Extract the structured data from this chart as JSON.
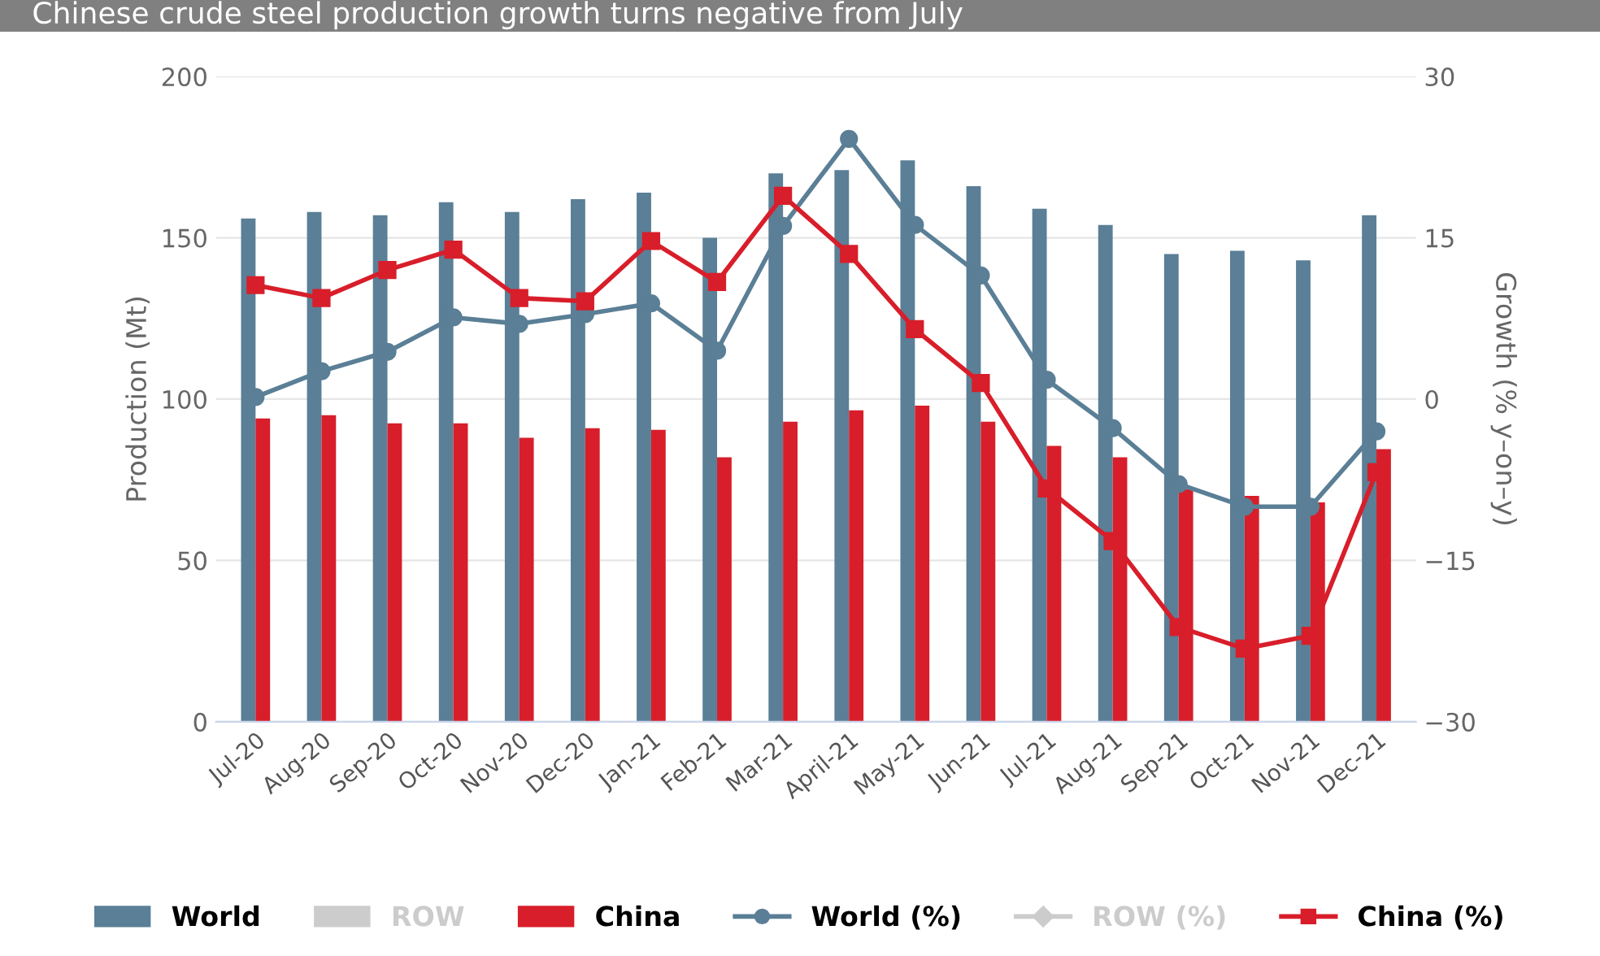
{
  "chart_data": {
    "type": "bar",
    "title": "Chinese crude steel production growth turns negative from July",
    "ylabel": "Production (Mt)",
    "y2label": "Growth (% y–on–y)",
    "categories": [
      "Jul-20",
      "Aug-20",
      "Sep-20",
      "Oct-20",
      "Nov-20",
      "Dec-20",
      "Jan-21",
      "Feb-21",
      "Mar-21",
      "April-21",
      "May-21",
      "Jun-21",
      "Jul-21",
      "Aug-21",
      "Sep-21",
      "Oct-21",
      "Nov-21",
      "Dec-21"
    ],
    "series": [
      {
        "name": "World",
        "color": "#5a7f96",
        "values": [
          156,
          158,
          157,
          161,
          158,
          162,
          164,
          150,
          170,
          171,
          174,
          166,
          159,
          154,
          145,
          146,
          143,
          157
        ]
      },
      {
        "name": "ROW",
        "color": "#cccccc",
        "values": [
          null,
          null,
          null,
          null,
          null,
          null,
          null,
          null,
          null,
          null,
          null,
          null,
          null,
          null,
          null,
          null,
          null,
          null
        ]
      },
      {
        "name": "China",
        "color": "#d81e2a",
        "values": [
          94,
          95,
          92.5,
          92.5,
          88,
          91,
          90.5,
          82,
          93,
          96.5,
          98,
          93,
          85.5,
          82,
          72,
          70,
          68,
          84.5
        ]
      },
      {
        "name": "World (%)",
        "type": "line",
        "axis": "y2",
        "marker": "circle",
        "color": "#5a7f96",
        "values": [
          0.2,
          2.6,
          4.4,
          7.6,
          7.0,
          7.9,
          8.9,
          4.5,
          16.1,
          24.2,
          16.2,
          11.5,
          1.8,
          -2.7,
          -7.9,
          -10,
          -10,
          -3
        ]
      },
      {
        "name": "ROW (%)",
        "type": "line",
        "axis": "y2",
        "marker": "diamond",
        "color": "#cccccc",
        "values": [
          null,
          null,
          null,
          null,
          null,
          null,
          null,
          null,
          null,
          null,
          null,
          null,
          null,
          null,
          null,
          null,
          null,
          null
        ]
      },
      {
        "name": "China (%)",
        "type": "line",
        "axis": "y2",
        "marker": "square",
        "color": "#d81e2a",
        "values": [
          10.6,
          9.4,
          12,
          13.9,
          9.4,
          9.1,
          14.7,
          10.9,
          18.9,
          13.5,
          6.5,
          1.5,
          -8.3,
          -13.2,
          -21.2,
          -23.2,
          -22,
          -6.8
        ]
      }
    ],
    "ylim": [
      0,
      200
    ],
    "yticks": [
      0,
      50,
      100,
      150,
      200
    ],
    "y2lim": [
      -30,
      30
    ],
    "y2ticks": [
      -30,
      -15,
      0,
      15,
      30
    ],
    "grid": "y",
    "legend": "bottom",
    "line_style": "solid"
  }
}
